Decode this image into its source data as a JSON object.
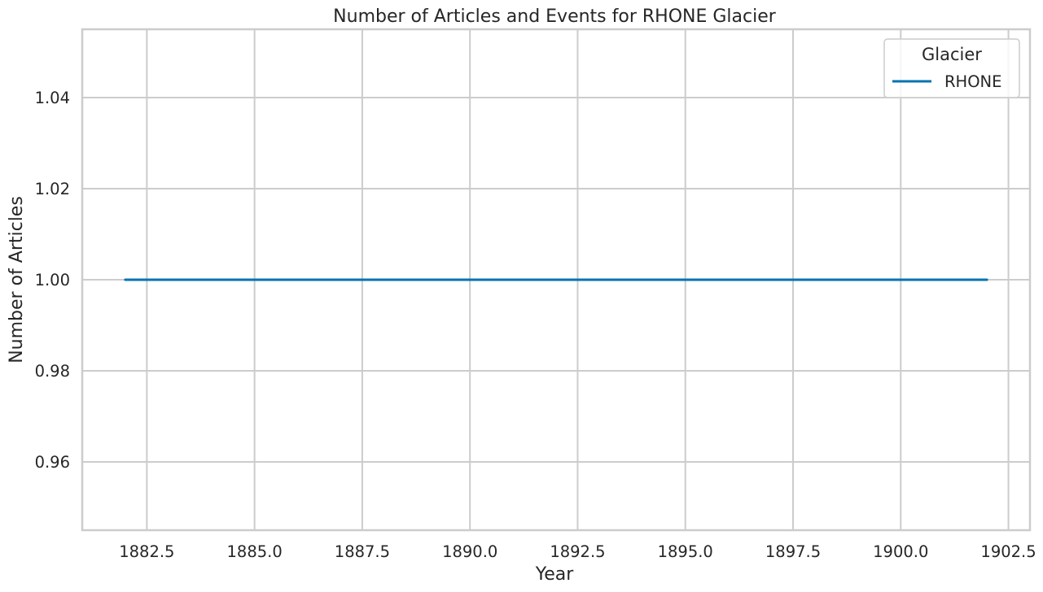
{
  "chart_data": {
    "type": "line",
    "title": "Number of Articles and Events for RHONE Glacier",
    "xlabel": "Year",
    "ylabel": "Number of Articles",
    "xlim": [
      1881.0,
      1903.0
    ],
    "ylim": [
      0.945,
      1.055
    ],
    "x_ticks": [
      1882.5,
      1885.0,
      1887.5,
      1890.0,
      1892.5,
      1895.0,
      1897.5,
      1900.0,
      1902.5
    ],
    "x_tick_labels": [
      "1882.5",
      "1885.0",
      "1887.5",
      "1890.0",
      "1892.5",
      "1895.0",
      "1897.5",
      "1900.0",
      "1902.5"
    ],
    "y_ticks": [
      0.96,
      0.98,
      1.0,
      1.02,
      1.04
    ],
    "y_tick_labels": [
      "0.96",
      "0.98",
      "1.00",
      "1.02",
      "1.04"
    ],
    "grid": true,
    "legend": {
      "title": "Glacier",
      "placement": "top-right"
    },
    "series": [
      {
        "name": "RHONE",
        "color": "#0173b2",
        "x": [
          1882,
          1902
        ],
        "y": [
          1,
          1
        ]
      }
    ]
  }
}
